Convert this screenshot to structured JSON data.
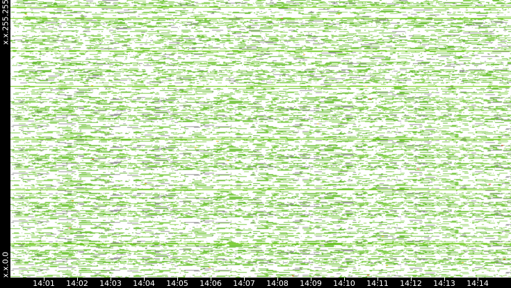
{
  "chart_data": {
    "type": "heatmap",
    "y_axis_labels": {
      "top": "x.x.255.255",
      "bottom": "x.x.0.0"
    },
    "x_tick_labels": [
      "14:01",
      "14:02",
      "14:03",
      "14:04",
      "14:05",
      "14:06",
      "14:07",
      "14:08",
      "14:09",
      "14:10",
      "14:11",
      "14:12",
      "14:13",
      "14:14"
    ],
    "colors": {
      "background": "#ffffff",
      "low": "#7ac943",
      "medium": "#66cc00",
      "high": "#e8b400",
      "peak": "#e03000",
      "idle": "#999999",
      "axis": "#000000"
    },
    "grid": false
  }
}
